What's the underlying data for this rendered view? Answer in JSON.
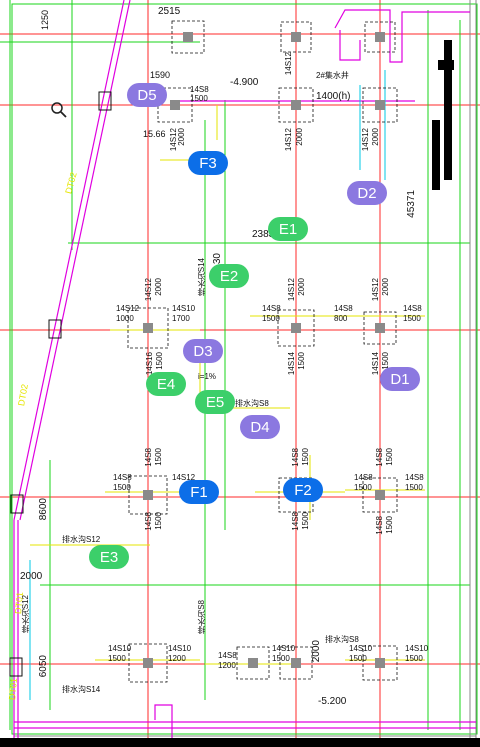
{
  "markers": [
    {
      "id": "D5",
      "label": "D5",
      "kind": "D"
    },
    {
      "id": "D2",
      "label": "D2",
      "kind": "D"
    },
    {
      "id": "D3",
      "label": "D3",
      "kind": "D"
    },
    {
      "id": "D1",
      "label": "D1",
      "kind": "D"
    },
    {
      "id": "D4",
      "label": "D4",
      "kind": "D"
    },
    {
      "id": "E1",
      "label": "E1",
      "kind": "E"
    },
    {
      "id": "E2",
      "label": "E2",
      "kind": "E"
    },
    {
      "id": "E4",
      "label": "E4",
      "kind": "E"
    },
    {
      "id": "E5",
      "label": "E5",
      "kind": "E"
    },
    {
      "id": "E3",
      "label": "E3",
      "kind": "E"
    },
    {
      "id": "F3",
      "label": "F3",
      "kind": "F"
    },
    {
      "id": "F1",
      "label": "F1",
      "kind": "F"
    },
    {
      "id": "F2",
      "label": "F2",
      "kind": "F"
    }
  ],
  "dimensions": {
    "d2515": "2515",
    "d1250": "1250",
    "d1590": "1590",
    "d4900": "-4.900",
    "d1400h": "1400(h)",
    "d1566": "15.66",
    "d2383": "2383",
    "d30": "30",
    "d45371": "45371",
    "d8600": "8600",
    "d2000": "2000",
    "d2000b": "2000",
    "d6050": "6050",
    "d5200": "-5.200",
    "dt02a": "DT02",
    "dt02b": "DT02",
    "dt01a": "DT01",
    "dt01b": "DT01",
    "pump": "2#集水井",
    "slope": "i=1%"
  },
  "pile_labels": {
    "a": "14S8",
    "b": "1500",
    "c": "14S12",
    "d": "2000",
    "e": "14S10",
    "f": "1700",
    "g": "1000",
    "h": "800",
    "i": "14S16",
    "j": "14S14",
    "k": "1200",
    "l": "排水沟S14",
    "m": "排水沟S8",
    "n": "排水沟S12"
  },
  "colors": {
    "axis_red": "#ff2a2a",
    "green": "#18d618",
    "magenta": "#e000e0",
    "yellow": "#e6e600",
    "cyan": "#00c8e6",
    "pile": "#8a8a8a"
  }
}
